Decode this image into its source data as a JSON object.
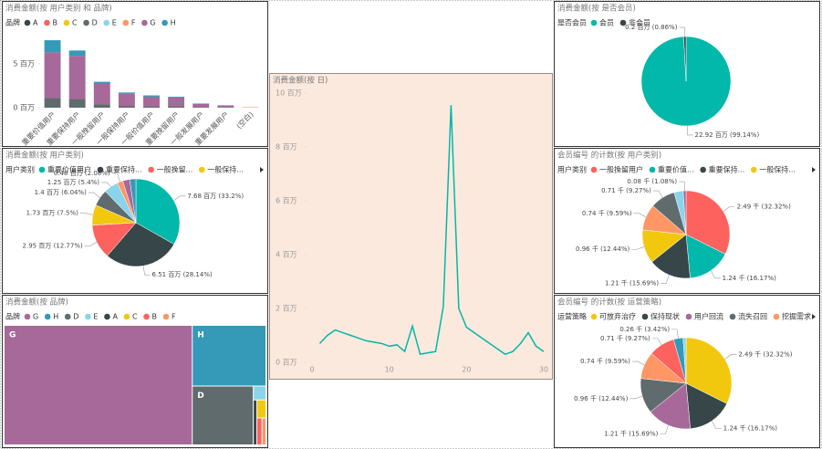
{
  "chart_data": [
    {
      "type": "bar",
      "stacked": true,
      "title": "消费金额(按 用户类别 和 品牌)",
      "legend_title": "品牌",
      "categories": [
        "重要价值用户",
        "重要保持用户",
        "一般挽留用户",
        "一般保持用户",
        "一般价值用户",
        "重要挽留用户",
        "一般发展用户",
        "重要发展用户",
        "(空白)"
      ],
      "ylim": [
        0,
        8
      ],
      "yticks": [
        {
          "value": 0,
          "label": "0 百万"
        },
        {
          "value": 5,
          "label": "5 百万"
        }
      ],
      "series": [
        {
          "name": "A",
          "color": "#374649",
          "values": [
            0,
            0,
            0,
            0,
            0,
            0,
            0,
            0,
            0
          ]
        },
        {
          "name": "B",
          "color": "#FD625E",
          "values": [
            0,
            0,
            0,
            0,
            0,
            0,
            0,
            0,
            0
          ]
        },
        {
          "name": "C",
          "color": "#F2C80F",
          "values": [
            0,
            0,
            0,
            0,
            0,
            0,
            0,
            0,
            0
          ]
        },
        {
          "name": "D",
          "color": "#5F6B6D",
          "values": [
            1.1,
            1.0,
            0.4,
            0.2,
            0.15,
            0.15,
            0.05,
            0.04,
            0
          ]
        },
        {
          "name": "E",
          "color": "#8AD4EB",
          "values": [
            0,
            0,
            0,
            0,
            0,
            0,
            0,
            0,
            0
          ]
        },
        {
          "name": "F",
          "color": "#FE9666",
          "values": [
            0,
            0,
            0,
            0,
            0,
            0,
            0,
            0,
            0.06
          ]
        },
        {
          "name": "G",
          "color": "#A66999",
          "values": [
            5.2,
            4.9,
            2.3,
            1.4,
            1.1,
            1.0,
            0.38,
            0.2,
            0
          ]
        },
        {
          "name": "H",
          "color": "#3599B8",
          "values": [
            1.38,
            0.61,
            0.25,
            0.13,
            0.15,
            0.1,
            0.05,
            0.04,
            0
          ]
        }
      ]
    },
    {
      "type": "pie",
      "title": "消费金额(按 是否会员)",
      "legend_title": "是否会员",
      "legend": [
        {
          "name": "会员",
          "color": "#01B8AA"
        },
        {
          "name": "非会员",
          "color": "#374649"
        }
      ],
      "values": [
        22.92,
        0.2
      ],
      "colors": [
        "#01B8AA",
        "#374649"
      ],
      "value_labels": [
        "22.92 百万 (99.14%)",
        "0.2 百万 (0.86%)"
      ]
    },
    {
      "type": "pie",
      "title": "消费金额(按 用户类别)",
      "legend_title": "用户类别",
      "legend_more": true,
      "legend": [
        {
          "name": "重要价值用户",
          "color": "#01B8AA"
        },
        {
          "name": "重要保持...",
          "color": "#374649"
        },
        {
          "name": "一般挽留...",
          "color": "#FD625E"
        },
        {
          "name": "一般保持...",
          "color": "#F2C80F"
        }
      ],
      "values": [
        7.68,
        6.51,
        2.95,
        1.73,
        1.4,
        1.25,
        0.48,
        0.6,
        0.53
      ],
      "colors": [
        "#01B8AA",
        "#374649",
        "#FD625E",
        "#F2C80F",
        "#5F6B6D",
        "#8AD4EB",
        "#FE9666",
        "#A66999",
        "#3599B8"
      ],
      "value_labels": [
        "7.68 百万 (33.2%)",
        "6.51 百万 (28.14%)",
        "2.95 百万 (12.77%)",
        "1.73 百万 (7.5%)",
        "1.4 百万 (6.04%)",
        "1.25 百万 (5.4%)",
        "0.48 百万 (2.08%)",
        null,
        null
      ]
    },
    {
      "type": "pie",
      "title": "会员编号 的计数(按 用户类别)",
      "legend_title": "用户类别",
      "legend_more": true,
      "legend": [
        {
          "name": "一般挽留用户",
          "color": "#FD625E"
        },
        {
          "name": "重要价值...",
          "color": "#01B8AA"
        },
        {
          "name": "重要保持...",
          "color": "#374649"
        },
        {
          "name": "一般保持...",
          "color": "#F2C80F"
        }
      ],
      "values": [
        2.49,
        1.24,
        1.21,
        0.96,
        0.74,
        0.71,
        0.26,
        0.08
      ],
      "colors": [
        "#FD625E",
        "#01B8AA",
        "#374649",
        "#F2C80F",
        "#FE9666",
        "#5F6B6D",
        "#8AD4EB",
        "#A66999"
      ],
      "value_labels": [
        "2.49 千 (32.32%)",
        "1.24 千 (16.17%)",
        "1.21 千 (15.69%)",
        "0.96 千 (12.44%)",
        "0.74 千 (9.59%)",
        "0.71 千 (9.27%)",
        null,
        "0.08 千 (1.08%)"
      ]
    },
    {
      "type": "treemap",
      "title": "消费金额(按 品牌)",
      "legend_title": "品牌",
      "categories": [
        "G",
        "H",
        "D",
        "E",
        "A",
        "C",
        "B",
        "F"
      ],
      "colors": [
        "#A66999",
        "#3599B8",
        "#5F6B6D",
        "#8AD4EB",
        "#374649",
        "#F2C80F",
        "#FD625E",
        "#FE9666"
      ],
      "values": [
        16.6,
        3.3,
        2.65,
        0.13,
        0.12,
        0.12,
        0.1,
        0.08
      ]
    },
    {
      "type": "pie",
      "title": "会员编号 的计数(按 运营策略)",
      "legend_title": "运营策略",
      "legend_more": true,
      "legend": [
        {
          "name": "可放弃治疗",
          "color": "#F2C80F"
        },
        {
          "name": "保持现状",
          "color": "#374649"
        },
        {
          "name": "用户回流",
          "color": "#A66999"
        },
        {
          "name": "流失召回",
          "color": "#5F6B6D"
        },
        {
          "name": "挖掘需求",
          "color": "#FE9666"
        }
      ],
      "values": [
        2.49,
        1.24,
        1.21,
        0.96,
        0.74,
        0.71,
        0.26,
        0.08
      ],
      "colors": [
        "#F2C80F",
        "#374649",
        "#A66999",
        "#5F6B6D",
        "#FE9666",
        "#FD625E",
        "#3599B8",
        "#8AD4EB"
      ],
      "value_labels": [
        "2.49 千 (32.32%)",
        "1.24 千 (16.17%)",
        "1.21 千 (15.69%)",
        "0.96 千 (12.44%)",
        "0.74 千 (9.59%)",
        "0.71 千 (9.27%)",
        "0.26 千 (3.42%)",
        null
      ]
    },
    {
      "type": "line",
      "title": "消费金额(按 日)",
      "color": "#01B8AA",
      "x": [
        1,
        2,
        3,
        4,
        5,
        6,
        7,
        8,
        9,
        10,
        11,
        12,
        13,
        14,
        15,
        16,
        17,
        18,
        19,
        20,
        21,
        22,
        23,
        24,
        25,
        26,
        27,
        28,
        29,
        30
      ],
      "values": [
        0.7,
        1.0,
        1.2,
        1.1,
        1.0,
        0.9,
        0.8,
        0.75,
        0.7,
        0.6,
        0.65,
        0.4,
        1.35,
        0.3,
        0.35,
        0.4,
        2.07,
        9.55,
        2.0,
        1.3,
        1.1,
        0.9,
        0.7,
        0.5,
        0.3,
        0.4,
        0.7,
        1.1,
        0.6,
        0.4
      ],
      "xlim": [
        0,
        30
      ],
      "xticks": [
        0,
        10,
        20,
        30
      ],
      "ylim": [
        0,
        10
      ],
      "yticks": [
        {
          "value": 0,
          "label": "0 百万"
        },
        {
          "value": 2,
          "label": "2 百万"
        },
        {
          "value": 4,
          "label": "4 百万"
        },
        {
          "value": 6,
          "label": "6 百万"
        },
        {
          "value": 8,
          "label": "8 百万"
        },
        {
          "value": 10,
          "label": "10 百万"
        }
      ]
    }
  ]
}
